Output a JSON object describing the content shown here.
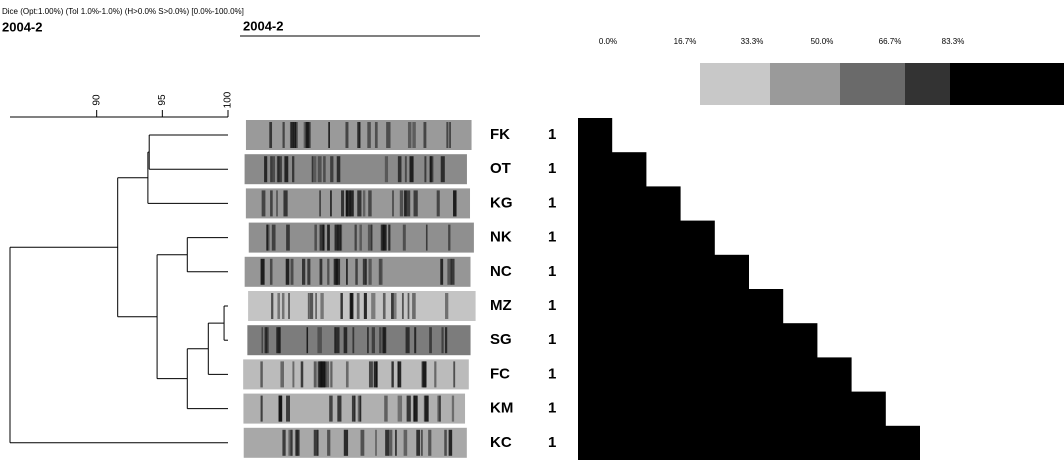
{
  "header": {
    "method": "Dice (Opt:1.00%) (Tol 1.0%-1.0%) (H>0.0% S>0.0%) [0.0%-100.0%]",
    "title": "2004-2",
    "gel_title": "2004-2"
  },
  "color_scale": {
    "labels": [
      "0.0%",
      "16.7%",
      "33.3%",
      "50.0%",
      "66.7%",
      "83.3%"
    ]
  },
  "dendrogram": {
    "xlim": [
      83.4,
      100
    ],
    "xticks": [
      90,
      95,
      100
    ],
    "nodes": [
      {
        "children": [
          0,
          1
        ],
        "similarity": 94.0
      },
      {
        "children": [
          10,
          2
        ],
        "similarity": 93.9
      },
      {
        "children": [
          3,
          4
        ],
        "similarity": 96.9
      },
      {
        "children": [
          5,
          6
        ],
        "similarity": 99.7
      },
      {
        "children": [
          13,
          7
        ],
        "similarity": 98.5
      },
      {
        "children": [
          14,
          8
        ],
        "similarity": 96.9
      },
      {
        "children": [
          12,
          15
        ],
        "similarity": 94.6
      },
      {
        "children": [
          11,
          16
        ],
        "similarity": 91.6
      },
      {
        "children": [
          17,
          9
        ],
        "similarity": 83.4
      }
    ]
  },
  "rows": [
    {
      "label": "FK",
      "count": "1"
    },
    {
      "label": "OT",
      "count": "1"
    },
    {
      "label": "KG",
      "count": "1"
    },
    {
      "label": "NK",
      "count": "1"
    },
    {
      "label": "NC",
      "count": "1"
    },
    {
      "label": "MZ",
      "count": "1"
    },
    {
      "label": "SG",
      "count": "1"
    },
    {
      "label": "FC",
      "count": "1"
    },
    {
      "label": "KM",
      "count": "1"
    },
    {
      "label": "KC",
      "count": "1"
    }
  ]
}
